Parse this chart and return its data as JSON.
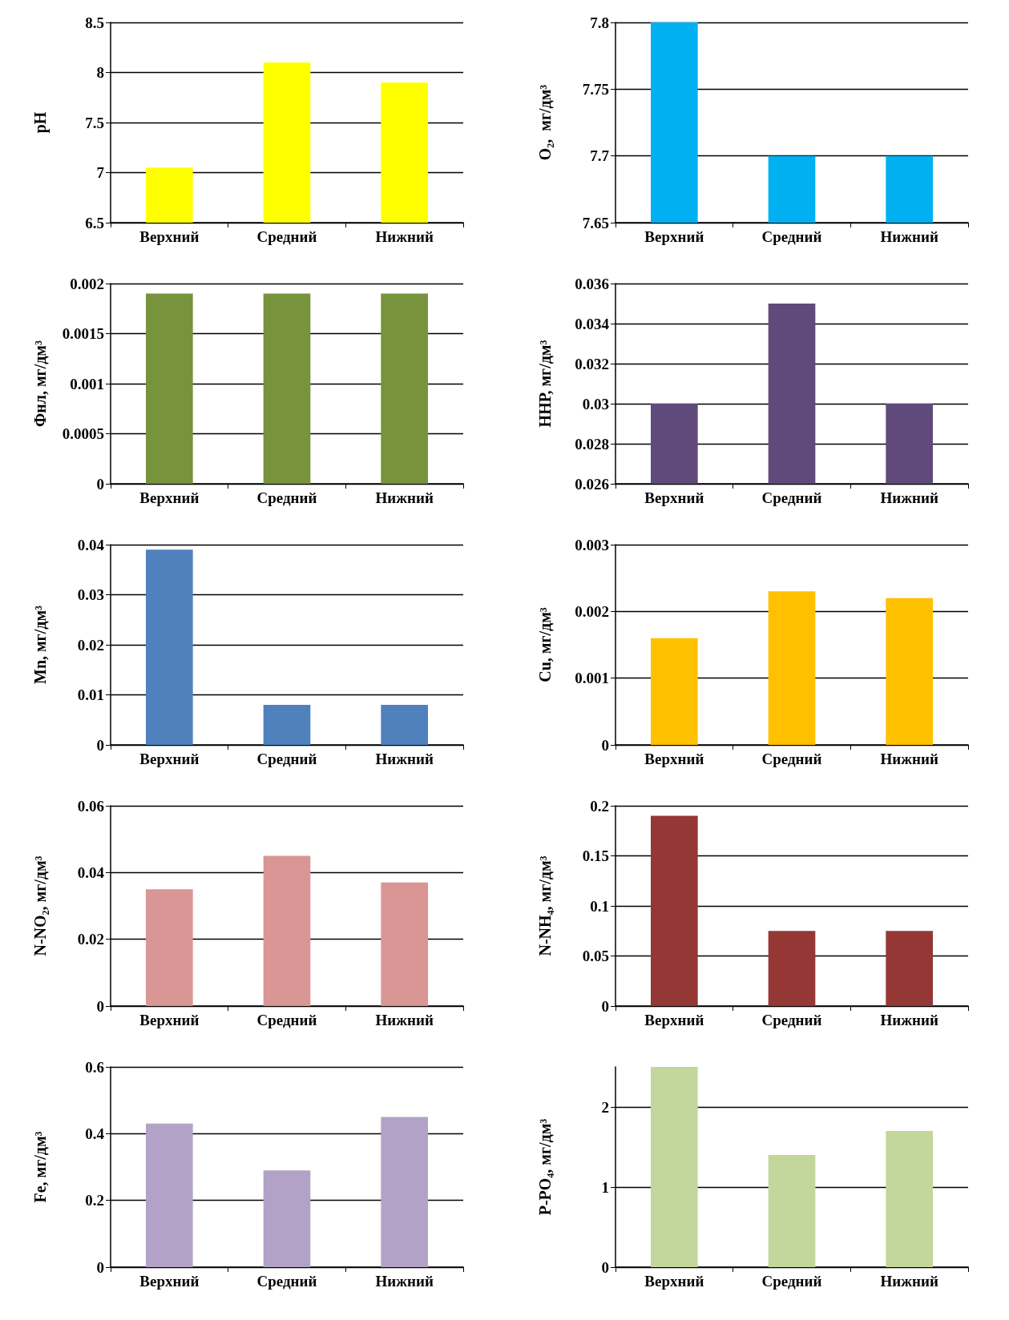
{
  "chart_data": [
    {
      "type": "bar",
      "ylabel": "pH",
      "categories": [
        "Верхний",
        "Средний",
        "Нижний"
      ],
      "values": [
        7.05,
        8.1,
        7.9
      ],
      "color": "#ffff00",
      "ylim": [
        6.5,
        8.5
      ],
      "yticks": [
        6.5,
        7,
        7.5,
        8,
        8.5
      ],
      "grid": "y"
    },
    {
      "type": "bar",
      "ylabel": "O₂,  мг/дм³",
      "categories": [
        "Верхний",
        "Средний",
        "Нижний"
      ],
      "values": [
        7.8,
        7.7,
        7.7
      ],
      "color": "#00b0f0",
      "ylim": [
        7.65,
        7.8
      ],
      "yticks": [
        7.65,
        7.7,
        7.75,
        7.8
      ],
      "grid": "y"
    },
    {
      "type": "bar",
      "ylabel": "Фнл, мг/дм³",
      "categories": [
        "Верхний",
        "Средний",
        "Нижний"
      ],
      "values": [
        0.0019,
        0.0019,
        0.0019
      ],
      "color": "#77933c",
      "ylim": [
        0,
        0.002
      ],
      "yticks": [
        0,
        0.0005,
        0.001,
        0.0015,
        0.002
      ],
      "grid": "y"
    },
    {
      "type": "bar",
      "ylabel": "ННР, мг/дм³",
      "categories": [
        "Верхний",
        "Средний",
        "Нижний"
      ],
      "values": [
        0.03,
        0.035,
        0.03
      ],
      "color": "#604a7b",
      "ylim": [
        0.026,
        0.036
      ],
      "yticks": [
        0.026,
        0.028,
        0.03,
        0.032,
        0.034,
        0.036
      ],
      "grid": "y"
    },
    {
      "type": "bar",
      "ylabel": "Mn, мг/дм³",
      "categories": [
        "Верхний",
        "Средний",
        "Нижний"
      ],
      "values": [
        0.039,
        0.008,
        0.008
      ],
      "color": "#4f81bd",
      "ylim": [
        0,
        0.04
      ],
      "yticks": [
        0,
        0.01,
        0.02,
        0.03,
        0.04
      ],
      "grid": "y"
    },
    {
      "type": "bar",
      "ylabel": "Cu, мг/дм³",
      "categories": [
        "Верхний",
        "Средний",
        "Нижний"
      ],
      "values": [
        0.0016,
        0.0023,
        0.0022
      ],
      "color": "#ffc000",
      "ylim": [
        0,
        0.003
      ],
      "yticks": [
        0,
        0.001,
        0.002,
        0.003
      ],
      "grid": "y"
    },
    {
      "type": "bar",
      "ylabel": "N-NO₂, мг/дм³",
      "categories": [
        "Верхний",
        "Средний",
        "Нижний"
      ],
      "values": [
        0.035,
        0.045,
        0.037
      ],
      "color": "#d99694",
      "ylim": [
        0,
        0.06
      ],
      "yticks": [
        0,
        0.02,
        0.04,
        0.06
      ],
      "grid": "y"
    },
    {
      "type": "bar",
      "ylabel": "N-NH₄, мг/дм³",
      "categories": [
        "Верхний",
        "Средний",
        "Нижний"
      ],
      "values": [
        0.19,
        0.075,
        0.075
      ],
      "color": "#953735",
      "ylim": [
        0,
        0.2
      ],
      "yticks": [
        0,
        0.05,
        0.1,
        0.15,
        0.2
      ],
      "grid": "y"
    },
    {
      "type": "bar",
      "ylabel": "Fe, мг/дм³",
      "categories": [
        "Верхний",
        "Средний",
        "Нижний"
      ],
      "values": [
        0.43,
        0.29,
        0.45
      ],
      "color": "#b3a2c7",
      "ylim": [
        0,
        0.6
      ],
      "yticks": [
        0,
        0.2,
        0.4,
        0.6
      ],
      "grid": "y"
    },
    {
      "type": "bar",
      "ylabel": "P-PO₄, мг/дм³",
      "categories": [
        "Верхний",
        "Средний",
        "Нижний"
      ],
      "values": [
        2.5,
        1.4,
        1.7
      ],
      "color": "#c3d69b",
      "ylim": [
        0,
        2.5
      ],
      "yticks": [
        0,
        1,
        2
      ],
      "grid": "y"
    }
  ]
}
